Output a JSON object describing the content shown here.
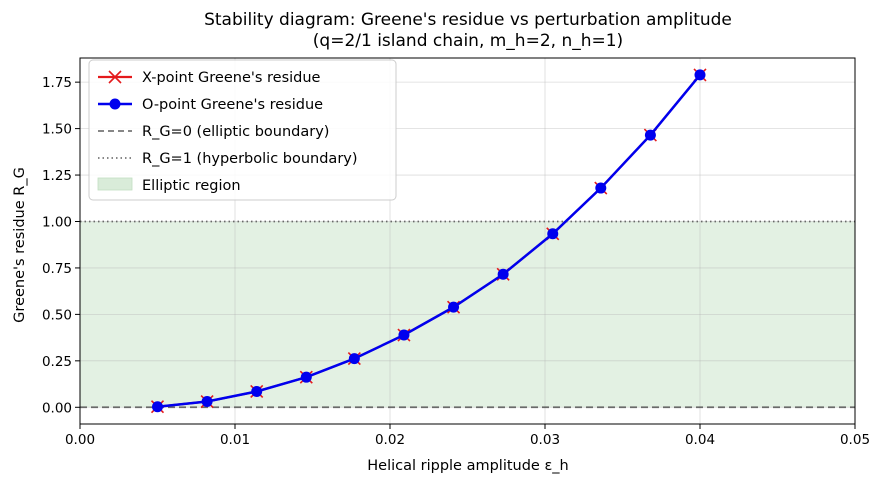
{
  "chart_data": {
    "type": "line",
    "title": "Stability diagram: Greene's residue vs perturbation amplitude",
    "subtitle": "(q=2/1 island chain, m_h=2, n_h=1)",
    "xlabel": "Helical ripple amplitude ε_h",
    "ylabel": "Greene's residue R_G",
    "xlim": [
      0.0,
      0.05
    ],
    "ylim": [
      -0.09,
      1.88
    ],
    "xticks": [
      0.0,
      0.01,
      0.02,
      0.03,
      0.04,
      0.05
    ],
    "xtick_labels": [
      "0.00",
      "0.01",
      "0.02",
      "0.03",
      "0.04",
      "0.05"
    ],
    "yticks": [
      0.0,
      0.25,
      0.5,
      0.75,
      1.0,
      1.25,
      1.5,
      1.75
    ],
    "ytick_labels": [
      "0.00",
      "0.25",
      "0.50",
      "0.75",
      "1.00",
      "1.25",
      "1.50",
      "1.75"
    ],
    "grid": true,
    "legend_position": "top-left",
    "x": [
      0.005,
      0.0082,
      0.0114,
      0.0146,
      0.0177,
      0.0209,
      0.0241,
      0.0273,
      0.0305,
      0.0336,
      0.0368,
      0.04
    ],
    "series": [
      {
        "name": "X-point Greene's residue",
        "color": "#e41a1c",
        "marker": "x",
        "values": [
          0.003,
          0.031,
          0.085,
          0.162,
          0.262,
          0.389,
          0.539,
          0.716,
          0.934,
          1.18,
          1.465,
          1.789
        ]
      },
      {
        "name": "O-point Greene's residue",
        "color": "#0000ee",
        "marker": "circle",
        "values": [
          0.003,
          0.031,
          0.085,
          0.162,
          0.262,
          0.389,
          0.539,
          0.716,
          0.934,
          1.18,
          1.465,
          1.789
        ]
      }
    ],
    "reference_lines": [
      {
        "name": "R_G=0 (elliptic boundary)",
        "y": 0.0,
        "style": "dashed",
        "color": "#555555"
      },
      {
        "name": "R_G=1 (hyperbolic boundary)",
        "y": 1.0,
        "style": "dotted",
        "color": "#555555"
      }
    ],
    "shaded_region": {
      "name": "Elliptic region",
      "y_from": 0.0,
      "y_to": 1.0,
      "color": "#d9ecd9"
    }
  }
}
